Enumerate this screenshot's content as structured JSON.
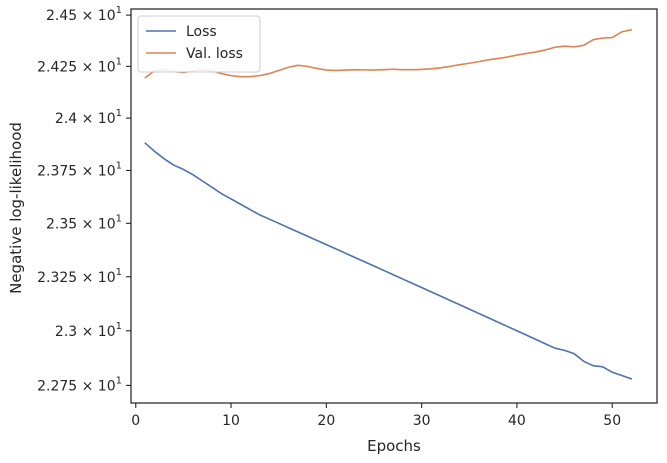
{
  "chart_data": {
    "type": "line",
    "title": "",
    "xlabel": "Epochs",
    "ylabel": "Negative log-likelihood",
    "xlim": [
      -0.5,
      54.7
    ],
    "ylim": [
      22.67,
      24.53
    ],
    "y_scale": "log",
    "grid": false,
    "legend_position": "top-left",
    "x_ticks": [
      {
        "value": 0,
        "label": "0"
      },
      {
        "value": 10,
        "label": "10"
      },
      {
        "value": 20,
        "label": "20"
      },
      {
        "value": 30,
        "label": "30"
      },
      {
        "value": 40,
        "label": "40"
      },
      {
        "value": 50,
        "label": "50"
      }
    ],
    "y_ticks": [
      {
        "value": 22.75,
        "mantissa": "2.275"
      },
      {
        "value": 23.0,
        "mantissa": "2.3"
      },
      {
        "value": 23.25,
        "mantissa": "2.325"
      },
      {
        "value": 23.5,
        "mantissa": "2.35"
      },
      {
        "value": 23.75,
        "mantissa": "2.375"
      },
      {
        "value": 24.0,
        "mantissa": "2.4"
      },
      {
        "value": 24.25,
        "mantissa": "2.425"
      },
      {
        "value": 24.5,
        "mantissa": "2.45"
      }
    ],
    "y_tick_times": "×",
    "y_tick_base": "10",
    "y_tick_exponent": "1",
    "x": [
      1,
      2,
      3,
      4,
      5,
      6,
      7,
      8,
      9,
      10,
      11,
      12,
      13,
      14,
      15,
      16,
      17,
      18,
      19,
      20,
      21,
      22,
      23,
      24,
      25,
      26,
      27,
      28,
      29,
      30,
      31,
      32,
      33,
      34,
      35,
      36,
      37,
      38,
      39,
      40,
      41,
      42,
      43,
      44,
      45,
      46,
      47,
      48,
      49,
      50,
      51,
      52
    ],
    "series": [
      {
        "name": "Loss",
        "color": "#4c72b0",
        "values": [
          23.88,
          23.84,
          23.805,
          23.775,
          23.755,
          23.73,
          23.7,
          23.67,
          23.64,
          23.615,
          23.59,
          23.565,
          23.54,
          23.52,
          23.5,
          23.48,
          23.46,
          23.44,
          23.42,
          23.4,
          23.38,
          23.36,
          23.34,
          23.32,
          23.3,
          23.28,
          23.26,
          23.24,
          23.22,
          23.2,
          23.18,
          23.16,
          23.14,
          23.12,
          23.1,
          23.08,
          23.06,
          23.04,
          23.02,
          23.0,
          22.98,
          22.96,
          22.94,
          22.92,
          22.91,
          22.895,
          22.86,
          22.84,
          22.835,
          22.81,
          22.795,
          22.78
        ]
      },
      {
        "name": "Val. loss",
        "color": "#dd8452",
        "values": [
          24.195,
          24.23,
          24.235,
          24.225,
          24.22,
          24.228,
          24.235,
          24.228,
          24.215,
          24.205,
          24.2,
          24.2,
          24.205,
          24.215,
          24.23,
          24.245,
          24.255,
          24.25,
          24.24,
          24.232,
          24.23,
          24.232,
          24.234,
          24.233,
          24.232,
          24.234,
          24.236,
          24.234,
          24.234,
          24.235,
          24.238,
          24.243,
          24.25,
          24.258,
          24.265,
          24.273,
          24.282,
          24.288,
          24.295,
          24.305,
          24.313,
          24.32,
          24.33,
          24.343,
          24.348,
          24.345,
          24.352,
          24.38,
          24.388,
          24.39,
          24.418,
          24.428
        ]
      }
    ]
  }
}
